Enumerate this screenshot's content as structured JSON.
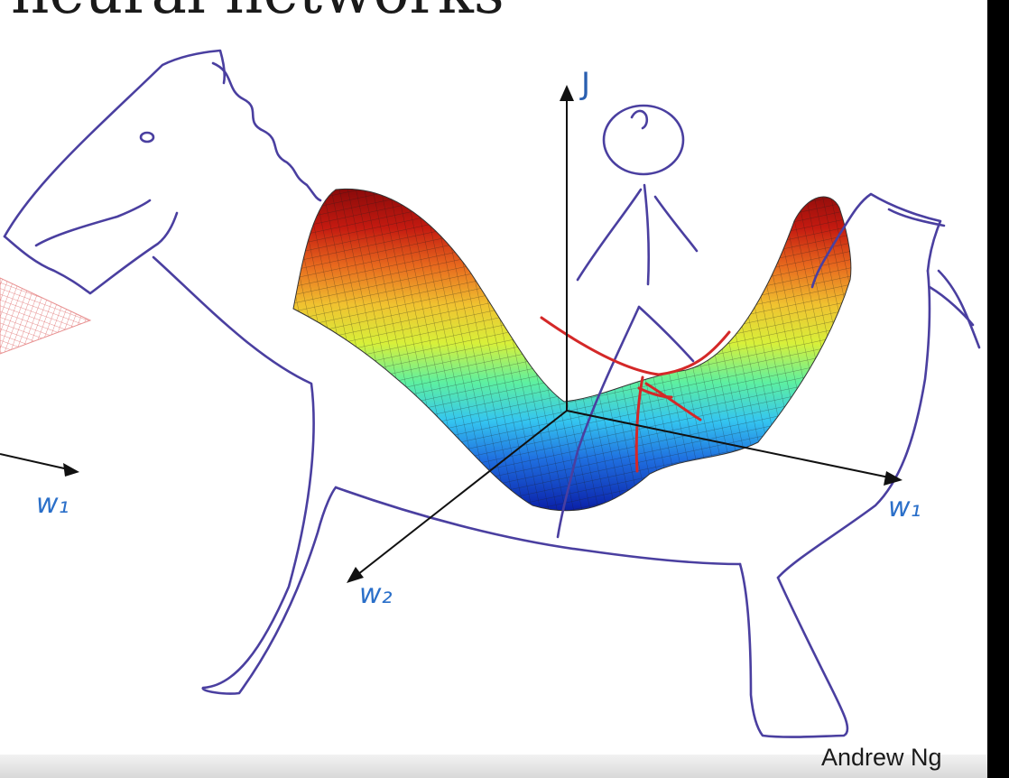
{
  "slide": {
    "title_fragment": "neural networks",
    "credit": "Andrew Ng"
  },
  "axes": {
    "vertical_label": "J",
    "right_axis_label": "w₁",
    "depth_axis_label": "w₂",
    "left_axis_label": "w₁"
  },
  "colors": {
    "ink": "#4a3fa0",
    "axis": "#111111",
    "label_blue": "#2a6fc9",
    "saddle_mark": "#d42828"
  },
  "surface_colors": [
    "#0a1fa8",
    "#1f6fe0",
    "#35c6f0",
    "#5ef0a0",
    "#d8f03a",
    "#f0c230",
    "#e86a1e",
    "#c41a10",
    "#8a0a0a"
  ]
}
